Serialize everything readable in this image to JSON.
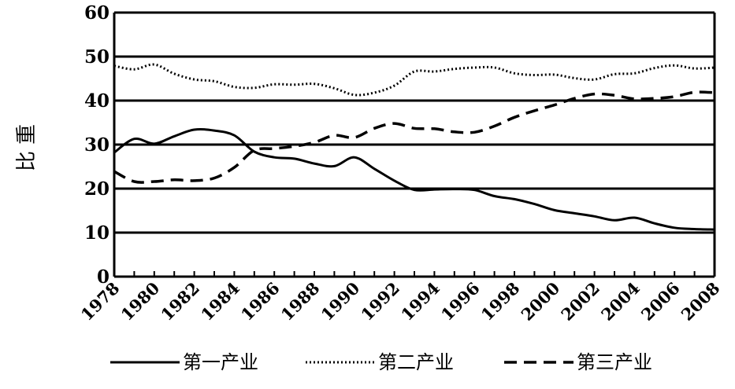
{
  "chart_data": {
    "type": "line",
    "ylabel": "比 重",
    "ylim": [
      0,
      60
    ],
    "yticks": [
      "0",
      "10",
      "20",
      "30",
      "40",
      "50",
      "60"
    ],
    "xlim": [
      1978,
      2008
    ],
    "xticks": [
      "1978",
      "1980",
      "1982",
      "1984",
      "1986",
      "1988",
      "1990",
      "1992",
      "1994",
      "1996",
      "1998",
      "2000",
      "2002",
      "2004",
      "2006",
      "2008"
    ],
    "grid": "horizontal",
    "legend_position": "bottom",
    "x": [
      1978,
      1979,
      1980,
      1981,
      1982,
      1983,
      1984,
      1985,
      1986,
      1987,
      1988,
      1989,
      1990,
      1991,
      1992,
      1993,
      1994,
      1995,
      1996,
      1997,
      1998,
      1999,
      2000,
      2001,
      2002,
      2003,
      2004,
      2005,
      2006,
      2007,
      2008
    ],
    "series": [
      {
        "name": "第一产业",
        "style": "solid",
        "values": [
          28.2,
          31.3,
          30.2,
          31.9,
          33.4,
          33.2,
          32.1,
          28.4,
          27.1,
          26.8,
          25.7,
          25.1,
          27.1,
          24.5,
          21.8,
          19.7,
          19.8,
          19.9,
          19.7,
          18.3,
          17.6,
          16.5,
          15.1,
          14.4,
          13.7,
          12.8,
          13.4,
          12.1,
          11.1,
          10.8,
          10.7
        ]
      },
      {
        "name": "第二产业",
        "style": "dotted",
        "values": [
          47.9,
          47.1,
          48.2,
          46.1,
          44.8,
          44.4,
          43.1,
          42.9,
          43.7,
          43.6,
          43.8,
          42.8,
          41.3,
          41.8,
          43.4,
          46.6,
          46.6,
          47.2,
          47.5,
          47.5,
          46.2,
          45.8,
          45.9,
          45.1,
          44.8,
          46.0,
          46.2,
          47.4,
          48.0,
          47.3,
          47.5
        ]
      },
      {
        "name": "第三产业",
        "style": "dashed",
        "values": [
          23.9,
          21.6,
          21.6,
          22.0,
          21.8,
          22.4,
          24.8,
          28.7,
          29.1,
          29.6,
          30.5,
          32.1,
          31.6,
          33.7,
          34.8,
          33.7,
          33.6,
          32.9,
          32.8,
          34.2,
          36.2,
          37.7,
          39.0,
          40.5,
          41.5,
          41.2,
          40.4,
          40.5,
          40.9,
          41.9,
          41.8
        ]
      }
    ]
  }
}
